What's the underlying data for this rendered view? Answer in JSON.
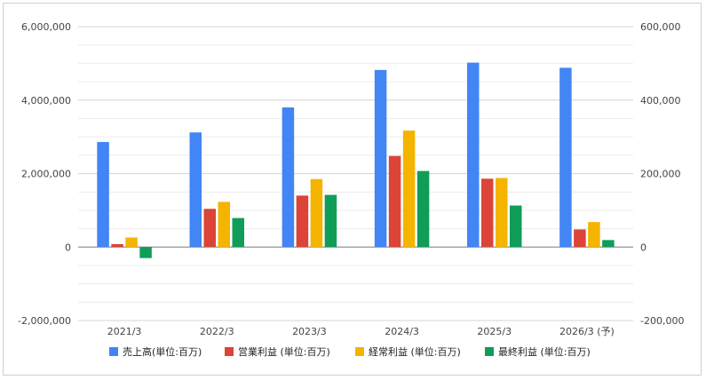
{
  "chart_data": {
    "type": "bar",
    "title": "",
    "xlabel": "",
    "ylabel": "",
    "categories": [
      "2021/3",
      "2022/3",
      "2023/3",
      "2024/3",
      "2025/3",
      "2026/3 (予)"
    ],
    "ylim_left": [
      -2000000,
      6000000
    ],
    "ylim_right": [
      -200000,
      600000
    ],
    "yticks_left": [
      "-2,000,000",
      "0",
      "2,000,000",
      "4,000,000",
      "6,000,000"
    ],
    "yticks_right": [
      "-200,000",
      "0",
      "200,000",
      "400,000",
      "600,000"
    ],
    "legend_position": "bottom",
    "grid": true,
    "series": [
      {
        "name": "売上高(単位:百万)",
        "axis": "left",
        "color": "#4285F4",
        "values": [
          2860000,
          3120000,
          3800000,
          4820000,
          5020000,
          4880000
        ]
      },
      {
        "name": "営業利益 (単位:百万)",
        "axis": "right",
        "color": "#DB4437",
        "values": [
          8000,
          104000,
          140000,
          248000,
          186000,
          48000
        ]
      },
      {
        "name": "経常利益 (単位:百万)",
        "axis": "right",
        "color": "#F4B400",
        "values": [
          26000,
          123000,
          185000,
          317000,
          188000,
          68000
        ]
      },
      {
        "name": "最終利益 (単位:百万)",
        "axis": "right",
        "color": "#0F9D58",
        "values": [
          -30000,
          79000,
          142000,
          207000,
          113000,
          19000
        ]
      }
    ]
  }
}
